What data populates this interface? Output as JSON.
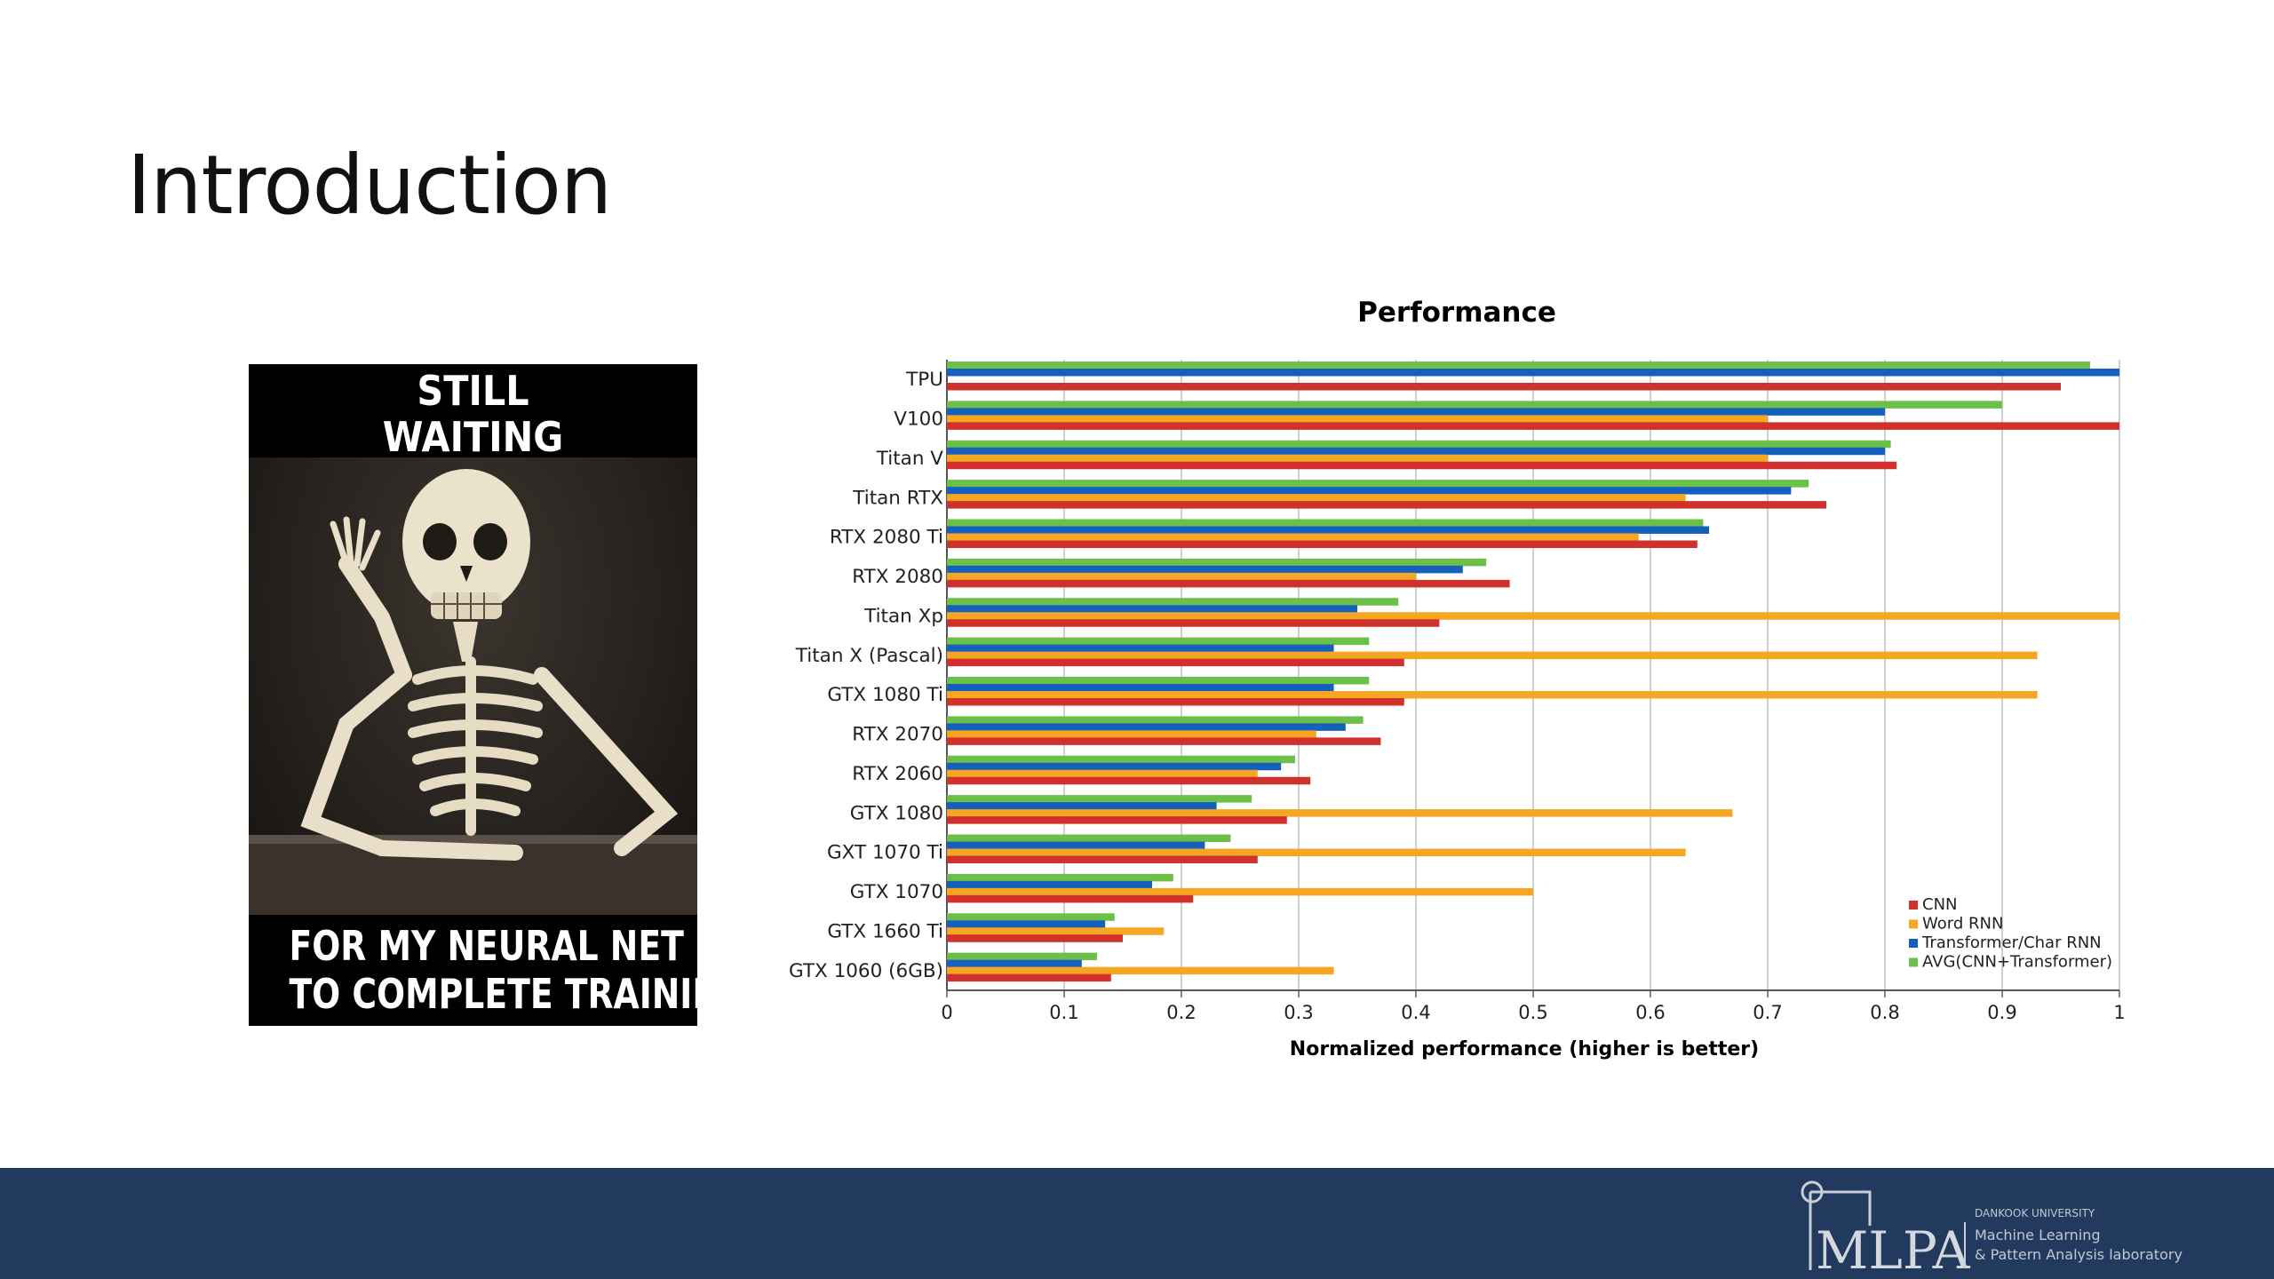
{
  "slide": {
    "title": "Introduction"
  },
  "meme": {
    "top_lines": [
      "STILL",
      "WAITING"
    ],
    "bottom_lines": [
      "FOR MY NEURAL NET",
      "TO COMPLETE TRAINING"
    ]
  },
  "chart_data": {
    "type": "bar",
    "orientation": "horizontal",
    "title": "Performance",
    "xlabel": "Normalized performance (higher is better)",
    "ylabel": "",
    "xlim": [
      0,
      1
    ],
    "xticks": [
      "0",
      "0.1",
      "0.2",
      "0.3",
      "0.4",
      "0.5",
      "0.6",
      "0.7",
      "0.8",
      "0.9",
      "1"
    ],
    "grid": true,
    "legend_position": "bottom-right",
    "categories": [
      "TPU",
      "V100",
      "Titan V",
      "Titan RTX",
      "RTX 2080 Ti",
      "RTX 2080",
      "Titan Xp",
      "Titan X (Pascal)",
      "GTX 1080 Ti",
      "RTX 2070",
      "RTX 2060",
      "GTX 1080",
      "GXT 1070 Ti",
      "GTX 1070",
      "GTX 1660 Ti",
      "GTX 1060 (6GB)"
    ],
    "series": [
      {
        "name": "CNN",
        "color": "#d0312d",
        "values": [
          0.95,
          1.0,
          0.81,
          0.75,
          0.64,
          0.48,
          0.42,
          0.39,
          0.39,
          0.37,
          0.31,
          0.29,
          0.265,
          0.21,
          0.15,
          0.14
        ]
      },
      {
        "name": "Word RNN",
        "color": "#f5a623",
        "values": [
          0,
          0.7,
          0.7,
          0.63,
          0.59,
          0.4,
          1.0,
          0.93,
          0.93,
          0.315,
          0.265,
          0.67,
          0.63,
          0.5,
          0.185,
          0.33
        ]
      },
      {
        "name": "Transformer/Char RNN",
        "color": "#1560bd",
        "values": [
          1.0,
          0.8,
          0.8,
          0.72,
          0.65,
          0.44,
          0.35,
          0.33,
          0.33,
          0.34,
          0.285,
          0.23,
          0.22,
          0.175,
          0.135,
          0.115
        ]
      },
      {
        "name": "AVG(CNN+Transformer)",
        "color": "#6cc04a",
        "values": [
          0.975,
          0.9,
          0.805,
          0.735,
          0.645,
          0.46,
          0.385,
          0.36,
          0.36,
          0.355,
          0.297,
          0.26,
          0.242,
          0.193,
          0.143,
          0.128
        ]
      }
    ]
  },
  "footer": {
    "logo_text": "MLPA",
    "university": "DANKOOK UNIVERSITY",
    "lab_line1": "Machine Learning",
    "lab_line2": "& Pattern Analysis laboratory"
  }
}
